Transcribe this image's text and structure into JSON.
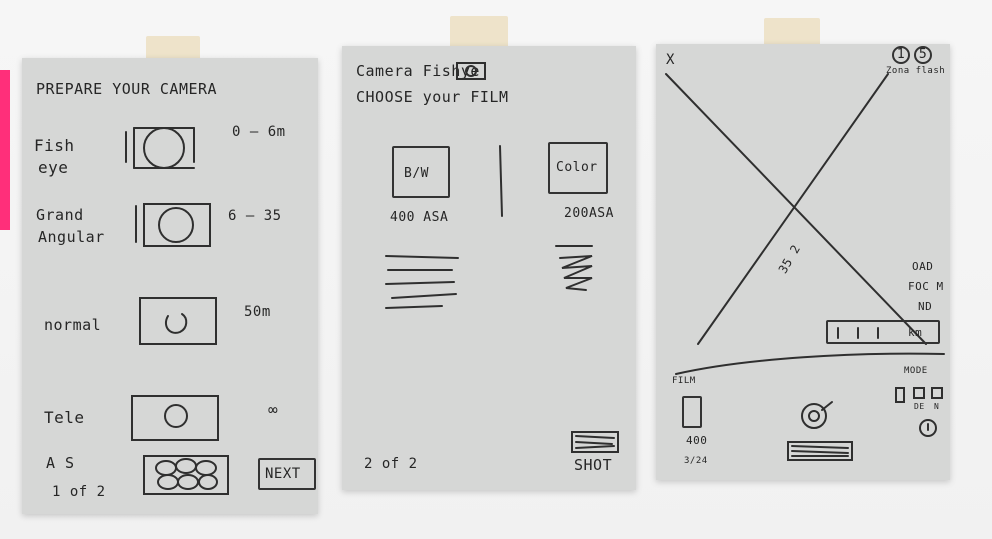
{
  "screens": {
    "one": {
      "title": "PREPARE YOUR CAMERA",
      "lenses": [
        {
          "label_line1": "Fish",
          "label_line2": "eye",
          "range": "0 — 6m"
        },
        {
          "label_line1": "Grand",
          "label_line2": "Angular",
          "range": "6 — 35"
        },
        {
          "label": "normal",
          "range": "50m"
        },
        {
          "label": "Tele",
          "range": "∞"
        }
      ],
      "auto_select": "A S",
      "page": "1 of 2",
      "next_button": "NEXT"
    },
    "two": {
      "title": "Camera     Fishye",
      "subtitle": "CHOOSE your FILM",
      "films": [
        {
          "name": "B/W",
          "iso": "400 ASA"
        },
        {
          "name": "Color",
          "iso": "200ASA"
        }
      ],
      "page": "2 of 2",
      "shot_button": "SHOT"
    },
    "three": {
      "close": "X",
      "top_icons": [
        "1",
        "5"
      ],
      "top_label": "Zona  flash",
      "center": "35 2",
      "controls": [
        "OAD",
        "FOC M",
        "ND",
        "km"
      ],
      "film_label": "FILM",
      "film_iso": "400",
      "film_count": "3/24",
      "mode_label": "MODE",
      "mode_options": [
        "DE",
        "N"
      ]
    }
  }
}
